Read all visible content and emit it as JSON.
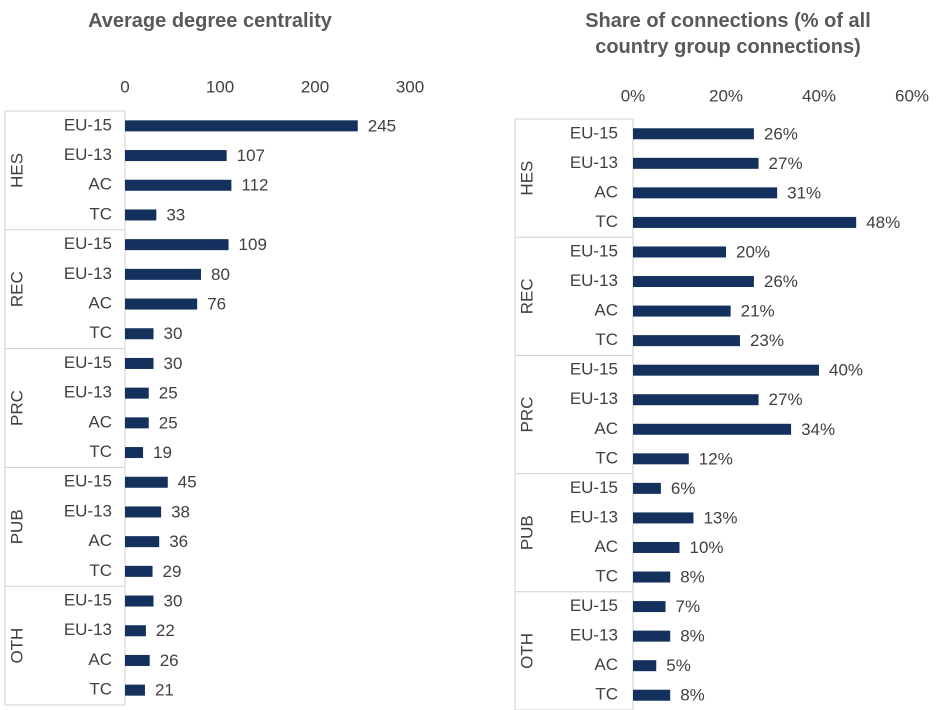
{
  "chart_data": [
    {
      "type": "bar",
      "orientation": "horizontal",
      "title": "Average degree centrality",
      "groups": [
        "HES",
        "REC",
        "PRC",
        "PUB",
        "OTH"
      ],
      "categories": [
        "EU-15",
        "EU-13",
        "AC",
        "TC",
        "EU-15",
        "EU-13",
        "AC",
        "TC",
        "EU-15",
        "EU-13",
        "AC",
        "TC",
        "EU-15",
        "EU-13",
        "AC",
        "TC",
        "EU-15",
        "EU-13",
        "AC",
        "TC"
      ],
      "values": [
        245,
        107,
        112,
        33,
        109,
        80,
        76,
        30,
        30,
        25,
        25,
        19,
        45,
        38,
        36,
        29,
        30,
        22,
        26,
        21
      ],
      "color": "#13315c",
      "xlim": [
        0,
        300
      ],
      "xticks": [
        0,
        100,
        200,
        300
      ]
    },
    {
      "type": "bar",
      "orientation": "horizontal",
      "title": "Share of connections (% of all country group connections)",
      "groups": [
        "HES",
        "REC",
        "PRC",
        "PUB",
        "OTH"
      ],
      "categories": [
        "EU-15",
        "EU-13",
        "AC",
        "TC",
        "EU-15",
        "EU-13",
        "AC",
        "TC",
        "EU-15",
        "EU-13",
        "AC",
        "TC",
        "EU-15",
        "EU-13",
        "AC",
        "TC",
        "EU-15",
        "EU-13",
        "AC",
        "TC"
      ],
      "values": [
        26,
        27,
        31,
        48,
        20,
        26,
        21,
        23,
        40,
        27,
        34,
        12,
        6,
        13,
        10,
        8,
        7,
        8,
        5,
        8
      ],
      "value_labels": [
        "26%",
        "27%",
        "31%",
        "48%",
        "20%",
        "26%",
        "21%",
        "23%",
        "40%",
        "27%",
        "34%",
        "12%",
        "6%",
        "13%",
        "10%",
        "8%",
        "7%",
        "8%",
        "5%",
        "8%"
      ],
      "color": "#13315c",
      "xlim": [
        0,
        60
      ],
      "xticks": [
        {
          "value": 0,
          "label": "0%"
        },
        {
          "value": 20,
          "label": "20%"
        },
        {
          "value": 40,
          "label": "40%"
        },
        {
          "value": 60,
          "label": "60%"
        }
      ]
    }
  ]
}
